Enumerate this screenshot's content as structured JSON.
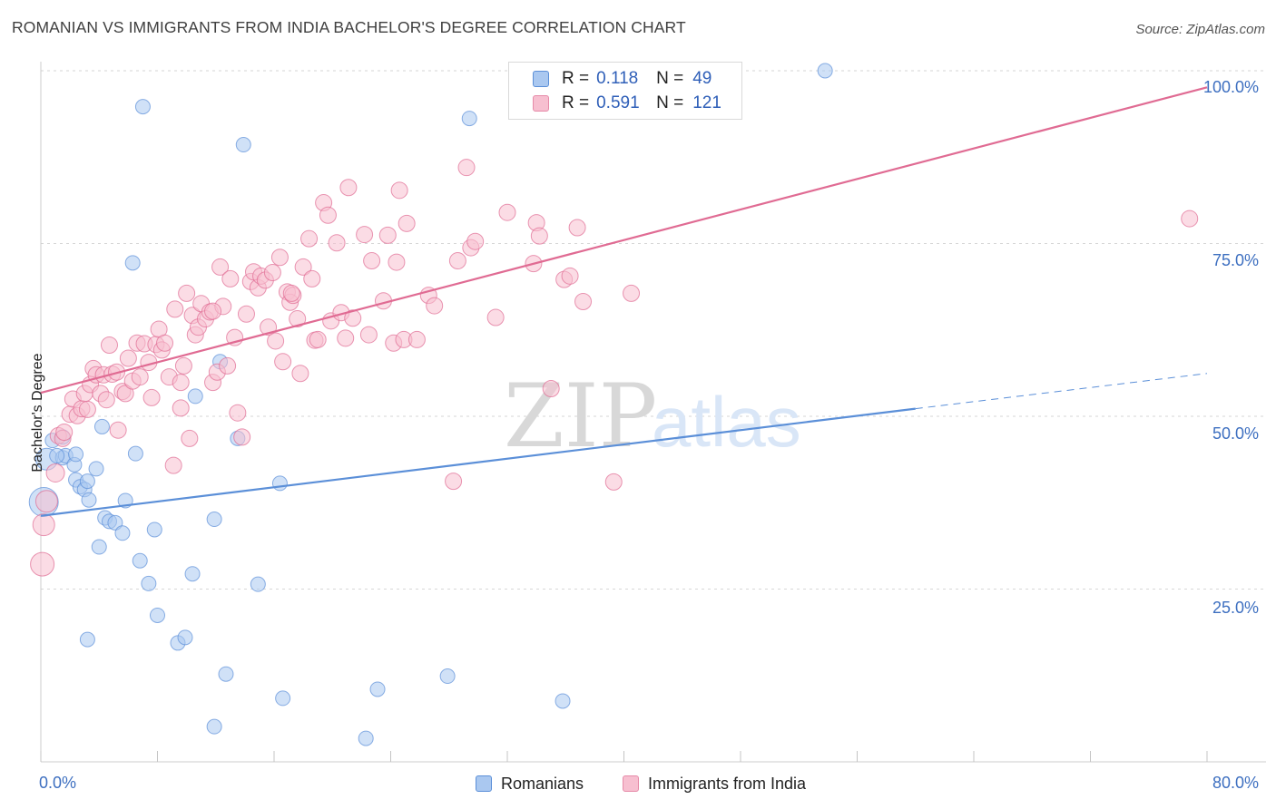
{
  "title": "ROMANIAN VS IMMIGRANTS FROM INDIA BACHELOR'S DEGREE CORRELATION CHART",
  "source": "Source: ZipAtlas.com",
  "watermark": {
    "zip": "ZIP",
    "atlas": "atlas"
  },
  "legend": {
    "r_label": "R =",
    "n_label": "N =",
    "items": [
      {
        "name": "Romanians",
        "r": "0.118",
        "n": "49",
        "fill": "#aac8f0",
        "stroke": "#5b8fd8"
      },
      {
        "name": "Immigrants from India",
        "r": "0.591",
        "n": "121",
        "fill": "#f7bfd0",
        "stroke": "#e68aa8"
      }
    ]
  },
  "chart_data": {
    "type": "scatter",
    "title": "ROMANIAN VS IMMIGRANTS FROM INDIA BACHELOR'S DEGREE CORRELATION CHART",
    "xlabel": "",
    "ylabel": "Bachelor's Degree",
    "xlim": [
      0,
      80
    ],
    "ylim": [
      0,
      100
    ],
    "x_tick_labels": [
      "0.0%",
      "80.0%"
    ],
    "y_tick_labels": [
      "25.0%",
      "50.0%",
      "75.0%",
      "100.0%"
    ],
    "y_ticks": [
      25,
      50,
      75,
      100
    ],
    "series": [
      {
        "name": "Romanians",
        "color": "#5b8fd8",
        "fill": "#aac8f0",
        "trend": {
          "x0": 0,
          "y0": 35.6,
          "x1": 60,
          "y1": 51.1,
          "dash_to_x": 80,
          "dash_to_y": 56.2
        },
        "points": [
          [
            0.2,
            37.6,
            16
          ],
          [
            0.4,
            43.8,
            12
          ],
          [
            0.8,
            46.5,
            8
          ],
          [
            1.5,
            47.0,
            8
          ],
          [
            1.5,
            44.0,
            8
          ],
          [
            1.7,
            44.3,
            8
          ],
          [
            2.3,
            43.0,
            8
          ],
          [
            2.4,
            40.8,
            8
          ],
          [
            2.4,
            44.5,
            8
          ],
          [
            2.7,
            39.8,
            8
          ],
          [
            3.0,
            39.4,
            8
          ],
          [
            3.2,
            40.6,
            8
          ],
          [
            3.3,
            37.9,
            8
          ],
          [
            3.8,
            42.4,
            8
          ],
          [
            4.0,
            31.1,
            8
          ],
          [
            4.2,
            48.5,
            8
          ],
          [
            4.4,
            35.3,
            8
          ],
          [
            4.7,
            34.8,
            8
          ],
          [
            5.1,
            34.6,
            8
          ],
          [
            5.6,
            33.1,
            8
          ],
          [
            5.8,
            37.8,
            8
          ],
          [
            6.3,
            72.2,
            8
          ],
          [
            6.5,
            44.6,
            8
          ],
          [
            6.8,
            29.1,
            8
          ],
          [
            7.0,
            94.8,
            8
          ],
          [
            7.4,
            25.8,
            8
          ],
          [
            7.8,
            33.6,
            8
          ],
          [
            8.0,
            21.2,
            8
          ],
          [
            9.4,
            17.2,
            8
          ],
          [
            9.9,
            18.0,
            8
          ],
          [
            10.4,
            27.2,
            8
          ],
          [
            10.6,
            52.9,
            8
          ],
          [
            11.9,
            5.1,
            8
          ],
          [
            11.9,
            35.1,
            8
          ],
          [
            12.3,
            57.9,
            8
          ],
          [
            12.7,
            12.7,
            8
          ],
          [
            13.5,
            46.8,
            8
          ],
          [
            13.9,
            89.3,
            8
          ],
          [
            14.9,
            25.7,
            8
          ],
          [
            16.4,
            40.3,
            8
          ],
          [
            16.6,
            9.2,
            8
          ],
          [
            22.3,
            3.4,
            8
          ],
          [
            23.1,
            10.5,
            8
          ],
          [
            27.9,
            12.4,
            8
          ],
          [
            29.4,
            93.1,
            8
          ],
          [
            35.8,
            8.8,
            8
          ],
          [
            53.8,
            100.0,
            8
          ],
          [
            3.2,
            17.7,
            8
          ],
          [
            1.1,
            44.3,
            8
          ]
        ]
      },
      {
        "name": "Immigrants from India",
        "color": "#e06b93",
        "fill": "#f7bfd0",
        "trend": {
          "x0": 0,
          "y0": 53.4,
          "x1": 80,
          "y1": 97.6
        },
        "points": [
          [
            0.1,
            28.6,
            13
          ],
          [
            0.2,
            34.3,
            12
          ],
          [
            0.4,
            37.7,
            12
          ],
          [
            1.0,
            41.8,
            10
          ],
          [
            1.2,
            47.2,
            9
          ],
          [
            1.5,
            46.8,
            9
          ],
          [
            1.6,
            47.7,
            9
          ],
          [
            2.0,
            50.3,
            9
          ],
          [
            2.2,
            52.5,
            9
          ],
          [
            2.5,
            50.1,
            9
          ],
          [
            2.8,
            51.1,
            9
          ],
          [
            3.0,
            53.3,
            9
          ],
          [
            3.2,
            51.0,
            9
          ],
          [
            3.4,
            54.6,
            9
          ],
          [
            3.6,
            56.9,
            9
          ],
          [
            3.8,
            56.0,
            9
          ],
          [
            4.1,
            53.3,
            9
          ],
          [
            4.3,
            56.0,
            9
          ],
          [
            4.5,
            52.4,
            9
          ],
          [
            4.7,
            60.3,
            9
          ],
          [
            4.9,
            56.1,
            9
          ],
          [
            5.2,
            56.4,
            9
          ],
          [
            5.3,
            48.0,
            9
          ],
          [
            5.6,
            53.6,
            9
          ],
          [
            5.8,
            53.3,
            9
          ],
          [
            6.0,
            58.4,
            9
          ],
          [
            6.3,
            55.1,
            9
          ],
          [
            6.6,
            60.6,
            9
          ],
          [
            6.8,
            55.7,
            9
          ],
          [
            7.1,
            60.5,
            9
          ],
          [
            7.4,
            57.8,
            9
          ],
          [
            7.6,
            52.7,
            9
          ],
          [
            7.9,
            60.4,
            9
          ],
          [
            8.1,
            62.6,
            9
          ],
          [
            8.3,
            59.6,
            9
          ],
          [
            8.5,
            60.6,
            9
          ],
          [
            8.8,
            55.7,
            9
          ],
          [
            9.1,
            42.9,
            9
          ],
          [
            9.2,
            65.5,
            9
          ],
          [
            9.6,
            54.9,
            9
          ],
          [
            9.8,
            57.3,
            9
          ],
          [
            10.0,
            67.8,
            9
          ],
          [
            10.2,
            46.8,
            9
          ],
          [
            10.4,
            64.6,
            9
          ],
          [
            10.6,
            61.8,
            9
          ],
          [
            10.8,
            62.9,
            9
          ],
          [
            11.0,
            66.3,
            9
          ],
          [
            11.3,
            64.1,
            9
          ],
          [
            11.6,
            65.1,
            9
          ],
          [
            11.8,
            54.9,
            9
          ],
          [
            12.1,
            56.4,
            9
          ],
          [
            12.3,
            71.6,
            9
          ],
          [
            12.5,
            65.9,
            9
          ],
          [
            12.8,
            57.3,
            9
          ],
          [
            13.0,
            69.9,
            9
          ],
          [
            13.3,
            61.4,
            9
          ],
          [
            13.5,
            50.5,
            9
          ],
          [
            13.8,
            47.0,
            9
          ],
          [
            14.1,
            64.8,
            9
          ],
          [
            14.4,
            69.5,
            9
          ],
          [
            14.6,
            70.9,
            9
          ],
          [
            14.9,
            68.6,
            9
          ],
          [
            15.1,
            70.3,
            9
          ],
          [
            15.4,
            69.7,
            9
          ],
          [
            15.6,
            62.9,
            9
          ],
          [
            15.9,
            70.8,
            9
          ],
          [
            16.1,
            60.9,
            9
          ],
          [
            16.4,
            73.0,
            9
          ],
          [
            16.6,
            57.9,
            9
          ],
          [
            16.9,
            68.0,
            9
          ],
          [
            17.1,
            66.5,
            9
          ],
          [
            17.3,
            67.5,
            9
          ],
          [
            17.6,
            64.1,
            9
          ],
          [
            17.8,
            56.2,
            9
          ],
          [
            18.0,
            71.6,
            9
          ],
          [
            18.4,
            75.7,
            9
          ],
          [
            18.6,
            69.9,
            9
          ],
          [
            18.8,
            61.0,
            9
          ],
          [
            19.0,
            61.1,
            9
          ],
          [
            19.4,
            80.9,
            9
          ],
          [
            19.7,
            79.1,
            9
          ],
          [
            19.9,
            63.8,
            9
          ],
          [
            20.3,
            75.1,
            9
          ],
          [
            20.6,
            65.0,
            9
          ],
          [
            20.9,
            61.3,
            9
          ],
          [
            21.1,
            83.1,
            9
          ],
          [
            21.4,
            64.2,
            9
          ],
          [
            22.2,
            76.3,
            9
          ],
          [
            22.5,
            61.8,
            9
          ],
          [
            22.7,
            72.5,
            9
          ],
          [
            23.5,
            66.7,
            9
          ],
          [
            23.8,
            76.2,
            9
          ],
          [
            24.2,
            60.6,
            9
          ],
          [
            24.4,
            72.3,
            9
          ],
          [
            24.6,
            82.7,
            9
          ],
          [
            24.9,
            61.1,
            9
          ],
          [
            25.1,
            77.9,
            9
          ],
          [
            26.6,
            67.5,
            9
          ],
          [
            27.0,
            66.0,
            9
          ],
          [
            28.3,
            40.6,
            9
          ],
          [
            28.6,
            72.5,
            9
          ],
          [
            29.2,
            86.0,
            9
          ],
          [
            29.5,
            74.4,
            9
          ],
          [
            29.8,
            75.3,
            9
          ],
          [
            31.2,
            64.3,
            9
          ],
          [
            32.0,
            79.5,
            9
          ],
          [
            33.8,
            72.1,
            9
          ],
          [
            34.0,
            78.0,
            9
          ],
          [
            34.2,
            76.1,
            9
          ],
          [
            35.0,
            54.0,
            9
          ],
          [
            35.9,
            69.8,
            9
          ],
          [
            36.3,
            70.3,
            9
          ],
          [
            36.8,
            77.3,
            9
          ],
          [
            37.2,
            66.6,
            9
          ],
          [
            39.3,
            40.5,
            9
          ],
          [
            40.5,
            67.8,
            9
          ],
          [
            78.8,
            78.6,
            9
          ],
          [
            25.8,
            61.1,
            9
          ],
          [
            17.2,
            67.8,
            9
          ],
          [
            9.6,
            51.2,
            9
          ],
          [
            11.8,
            65.2,
            9
          ]
        ]
      }
    ]
  }
}
